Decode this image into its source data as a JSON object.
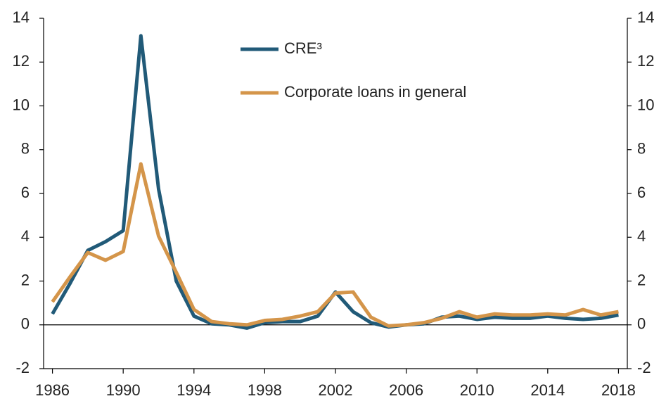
{
  "chart_data": {
    "type": "line",
    "x": [
      1986,
      1987,
      1988,
      1989,
      1990,
      1991,
      1992,
      1993,
      1994,
      1995,
      1996,
      1997,
      1998,
      1999,
      2000,
      2001,
      2002,
      2003,
      2004,
      2005,
      2006,
      2007,
      2008,
      2009,
      2010,
      2011,
      2012,
      2013,
      2014,
      2015,
      2016,
      2017,
      2018
    ],
    "series": [
      {
        "name": "CRE³",
        "color": "#215a78",
        "values": [
          0.5,
          1.9,
          3.4,
          3.8,
          4.3,
          13.2,
          6.2,
          2.0,
          0.4,
          0.05,
          0.0,
          -0.15,
          0.1,
          0.15,
          0.15,
          0.4,
          1.5,
          0.6,
          0.1,
          -0.1,
          0.0,
          0.05,
          0.35,
          0.4,
          0.25,
          0.35,
          0.3,
          0.3,
          0.4,
          0.3,
          0.25,
          0.3,
          0.45
        ]
      },
      {
        "name": "Corporate loans in general",
        "color": "#d4954a",
        "values": [
          1.05,
          2.2,
          3.3,
          2.95,
          3.35,
          7.35,
          4.05,
          2.4,
          0.7,
          0.15,
          0.05,
          0.0,
          0.2,
          0.25,
          0.4,
          0.6,
          1.45,
          1.5,
          0.35,
          -0.05,
          0.0,
          0.1,
          0.3,
          0.6,
          0.35,
          0.5,
          0.45,
          0.45,
          0.5,
          0.45,
          0.7,
          0.45,
          0.6
        ]
      }
    ],
    "xlim": [
      1985.5,
      2018.5
    ],
    "xticks": [
      1986,
      1990,
      1994,
      1998,
      2002,
      2006,
      2010,
      2014,
      2018
    ],
    "ylim": [
      -2,
      14
    ],
    "yticks": [
      -2,
      0,
      2,
      4,
      6,
      8,
      10,
      12,
      14
    ],
    "y2lim": [
      -2,
      14
    ],
    "y2ticks": [
      -2,
      0,
      2,
      4,
      6,
      8,
      10,
      12,
      14
    ],
    "legend": "top-center"
  }
}
